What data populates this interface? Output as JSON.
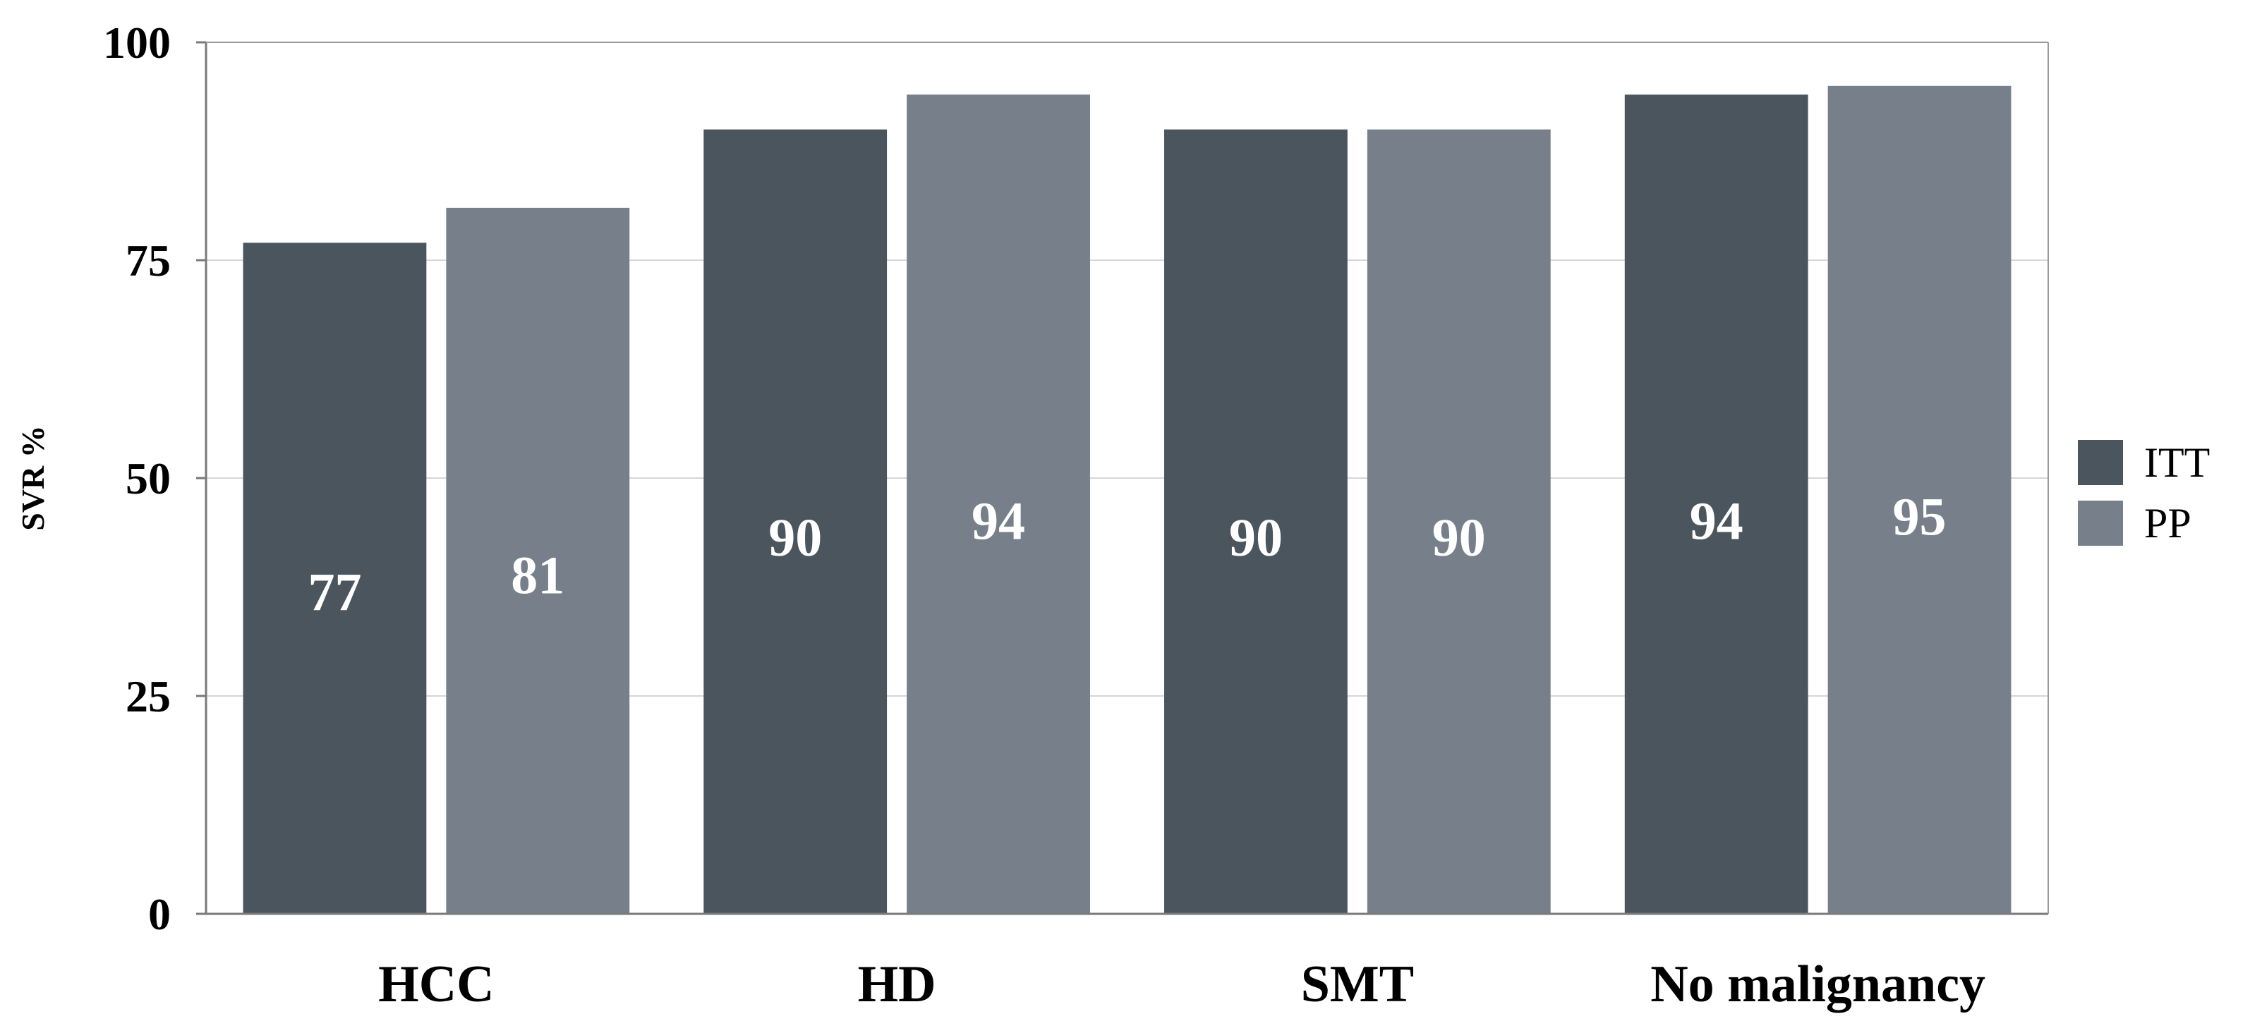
{
  "chart_data": {
    "type": "bar",
    "title": "",
    "xlabel": "",
    "ylabel": "SVR %",
    "ylim": [
      0,
      100
    ],
    "yticks": [
      0,
      25,
      50,
      75,
      100
    ],
    "grid": true,
    "legend_position": "right",
    "categories": [
      "HCC",
      "HD",
      "SMT",
      "No malignancy"
    ],
    "series": [
      {
        "name": "ITT",
        "color": "#4a555e",
        "values": [
          77,
          90,
          90,
          94
        ]
      },
      {
        "name": "PP",
        "color": "#77808a",
        "values": [
          81,
          94,
          90,
          95
        ]
      }
    ]
  }
}
